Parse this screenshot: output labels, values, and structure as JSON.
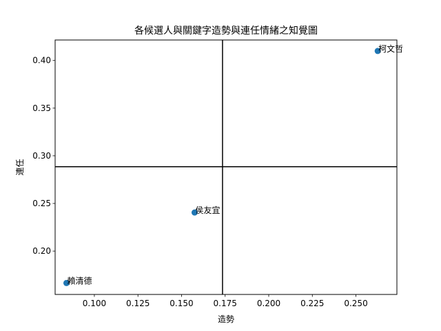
{
  "chart_data": {
    "type": "scatter",
    "title": "各候選人與關鍵字造勢與連任情緒之知覺圖",
    "xlabel": "造勢",
    "ylabel": "連任",
    "xlim": [
      0.0775,
      0.2735
    ],
    "ylim": [
      0.1545,
      0.4215
    ],
    "xticks": [
      0.1,
      0.125,
      0.15,
      0.175,
      0.2,
      0.225,
      0.25
    ],
    "xtick_labels": [
      "0.100",
      "0.125",
      "0.150",
      "0.175",
      "0.200",
      "0.225",
      "0.250"
    ],
    "yticks": [
      0.2,
      0.25,
      0.3,
      0.35,
      0.4
    ],
    "ytick_labels": [
      "0.20",
      "0.25",
      "0.30",
      "0.35",
      "0.40"
    ],
    "grid": false,
    "reference_lines": {
      "x": 0.1735,
      "y": 0.2885
    },
    "point_color": "#1f77b4",
    "points": [
      {
        "label": "柯文哲",
        "x": 0.2625,
        "y": 0.41
      },
      {
        "label": "侯友宜",
        "x": 0.1575,
        "y": 0.2405
      },
      {
        "label": "賴清德",
        "x": 0.084,
        "y": 0.1665
      }
    ]
  }
}
